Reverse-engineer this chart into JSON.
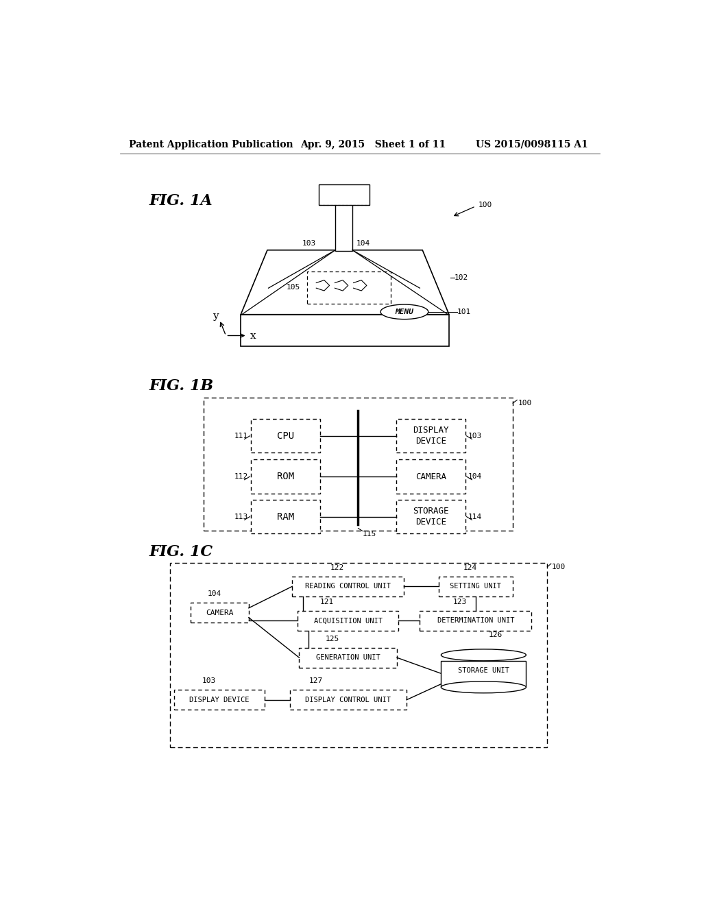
{
  "bg_color": "#ffffff",
  "header_left": "Patent Application Publication",
  "header_mid": "Apr. 9, 2015   Sheet 1 of 11",
  "header_right": "US 2015/0098115 A1",
  "fig1a_label": "FIG. 1A",
  "fig1b_label": "FIG. 1B",
  "fig1c_label": "FIG. 1C",
  "text_color": "#000000"
}
